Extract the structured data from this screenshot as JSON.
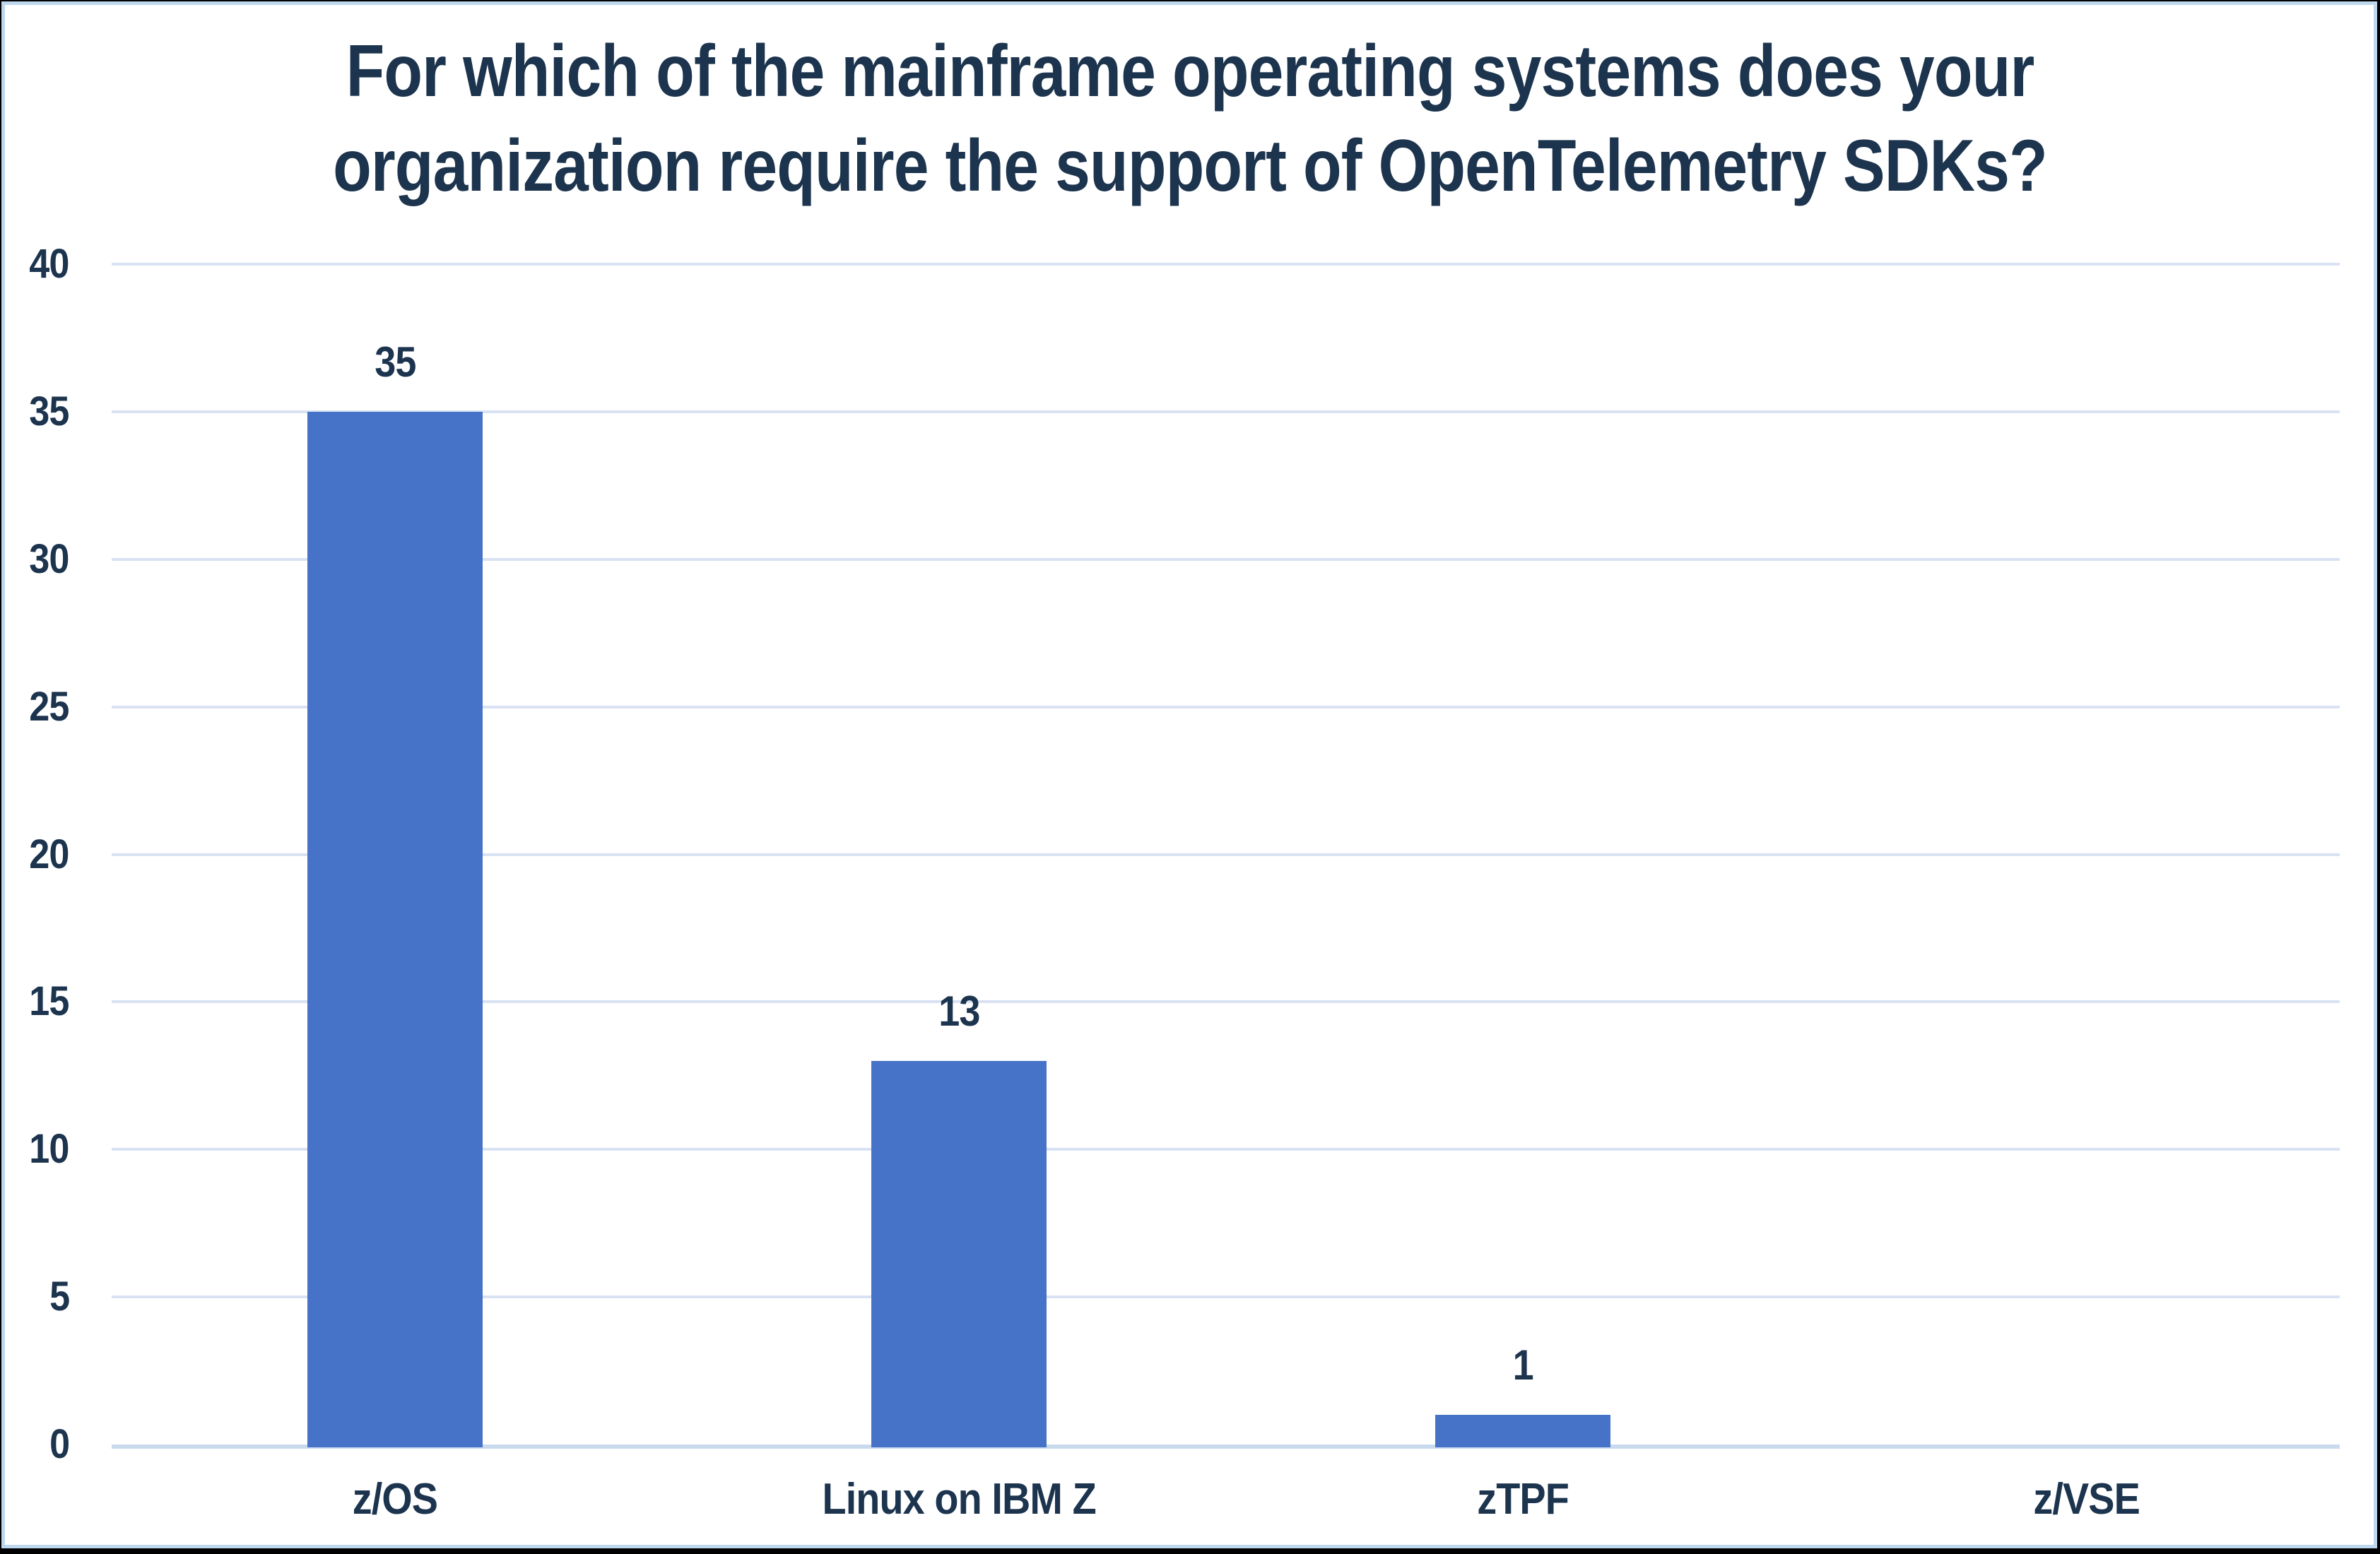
{
  "header": {
    "title_lines": [
      "For which of the mainframe operating systems does your",
      "organization require the support of OpenTelemetry SDKs?"
    ]
  },
  "chart_data": {
    "type": "bar",
    "title": "For which of the mainframe operating systems does your organization require the support of OpenTelemetry SDKs?",
    "categories": [
      "z/OS",
      "Linux on IBM Z",
      "zTPF",
      "z/VSE"
    ],
    "values": [
      35,
      13,
      1,
      0
    ],
    "bar_value_labels": [
      "35",
      "13",
      "1",
      ""
    ],
    "xlabel": "",
    "ylabel": "",
    "ylim": [
      0,
      40
    ],
    "yticks": [
      0,
      5,
      10,
      15,
      20,
      25,
      30,
      35,
      40
    ],
    "grid": "horizontal",
    "legend_position": "none",
    "colors": {
      "bar_fill": "#4673C7",
      "text": "#1C344E",
      "gridline": "#D9E2F3",
      "axis_baseline": "#C9DAEE",
      "inner_frame_border": "#BDD7EE",
      "outer_frame": "#000000",
      "plot_background": "#FFFFFF"
    }
  }
}
